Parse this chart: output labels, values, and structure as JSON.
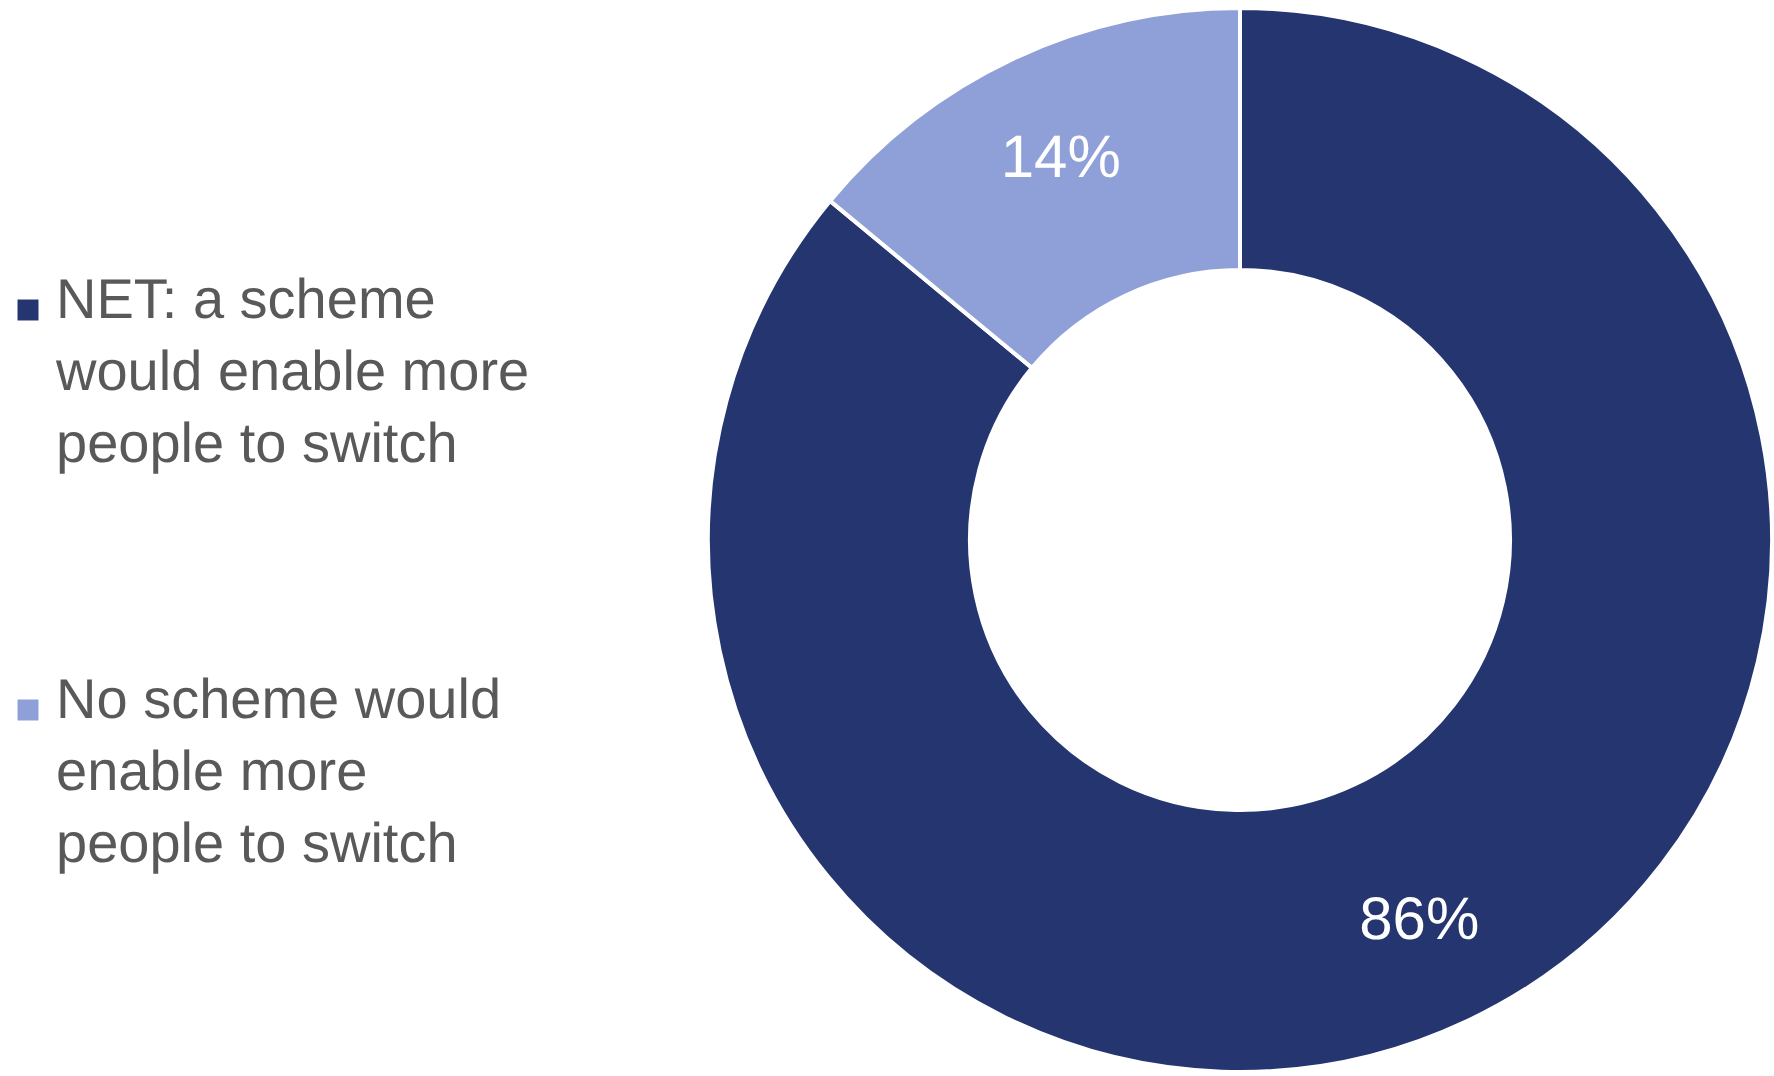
{
  "chart_data": {
    "type": "donut",
    "categories": [
      "NET: a scheme would enable more people to switch",
      "No scheme would enable more people to switch"
    ],
    "values": [
      86,
      14
    ],
    "colors": [
      "#243570",
      "#8fa0d8"
    ],
    "value_labels": [
      "86%",
      "14%"
    ],
    "legend": "left"
  }
}
